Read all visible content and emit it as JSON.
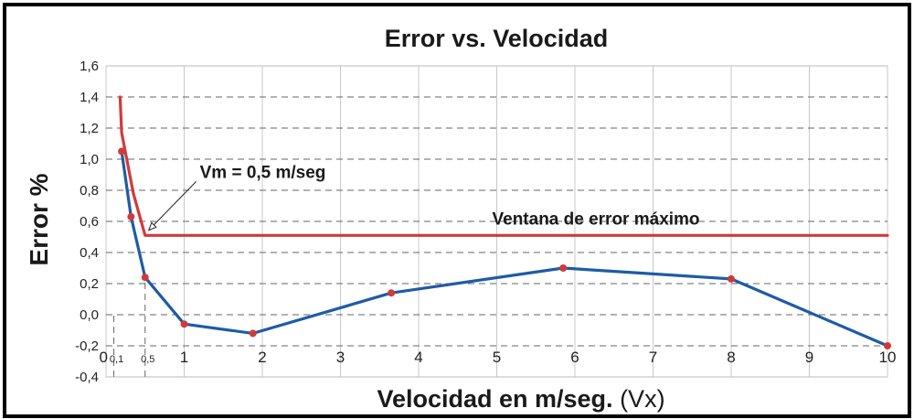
{
  "chart_data": {
    "type": "line",
    "title": "Error vs. Velocidad",
    "xlabel": "Velocidad en m/seg.",
    "xlabel_suffix": "(Vx)",
    "ylabel": "Error %",
    "xlim": [
      0,
      10
    ],
    "ylim": [
      -0.4,
      1.6
    ],
    "y_ticks": [
      "-0,4",
      "-0,2",
      "0,0",
      "0,2",
      "0,4",
      "0,6",
      "0,8",
      "1,0",
      "1,2",
      "1,4",
      "1,6"
    ],
    "y_tick_values": [
      -0.4,
      -0.2,
      0.0,
      0.2,
      0.4,
      0.6,
      0.8,
      1.0,
      1.2,
      1.4,
      1.6
    ],
    "x_ticks": [
      "0",
      "1",
      "2",
      "3",
      "4",
      "5",
      "6",
      "7",
      "8",
      "9",
      "10"
    ],
    "x_tick_values": [
      0,
      1,
      2,
      3,
      4,
      5,
      6,
      7,
      8,
      9,
      10
    ],
    "x_minor_ticks": [
      "0,1",
      "0,5"
    ],
    "x_minor_tick_values": [
      0.1,
      0.5
    ],
    "grid": true,
    "series": [
      {
        "color": "#1f5ba6",
        "marker_color": "#d23a3a",
        "x": [
          0.2,
          0.32,
          0.5,
          1.0,
          1.88,
          3.65,
          5.85,
          8.0,
          10.0
        ],
        "y": [
          1.05,
          0.63,
          0.24,
          -0.06,
          -0.12,
          0.14,
          0.3,
          0.23,
          -0.2
        ]
      },
      {
        "color": "#d23a3a",
        "x": [
          0.18,
          0.2,
          0.35,
          0.5,
          10.0
        ],
        "y": [
          1.4,
          1.17,
          0.78,
          0.51,
          0.51
        ]
      }
    ],
    "annotations": [
      {
        "text": "Vm = 0,5 m/seg",
        "x": 1.2,
        "y": 0.88,
        "arrow_to_x": 0.5,
        "arrow_to_y": 0.52
      },
      {
        "text": "Ventana de error máximo",
        "x": 5.0,
        "y": 0.58
      }
    ],
    "reference_lines": [
      {
        "x": 0.1,
        "y_from": -0.4,
        "y_to": 0.0
      },
      {
        "x": 0.5,
        "y_from": -0.4,
        "y_to": 0.24
      }
    ]
  }
}
